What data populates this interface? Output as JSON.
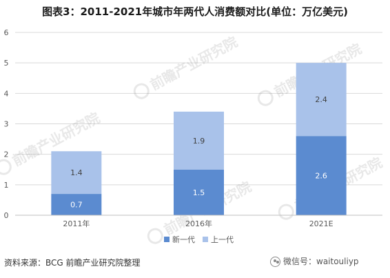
{
  "title": "图表3：2011-2021年城市年两代人消费额对比(单位：万亿美元)",
  "source": "资料来源：BCG 前瞻产业研究院整理",
  "wechat": "微信号：waitouliyp",
  "watermark": "前瞻产业研究院",
  "colors": {
    "series1": "#5b8bd0",
    "series2": "#a9c2ea",
    "grid": "#d9d9d9",
    "axis": "#bfbfbf",
    "label": "#595959"
  },
  "chart_data": {
    "type": "bar",
    "stacked": true,
    "categories": [
      "2011年",
      "2016年",
      "2021E"
    ],
    "series": [
      {
        "name": "新一代",
        "values": [
          0.7,
          1.5,
          2.6
        ]
      },
      {
        "name": "上一代",
        "values": [
          1.4,
          1.9,
          2.4
        ]
      }
    ],
    "ylim": [
      0,
      6
    ],
    "yticks": [
      0,
      1,
      2,
      3,
      4,
      5,
      6
    ],
    "grid": true,
    "legend": "bottom"
  }
}
